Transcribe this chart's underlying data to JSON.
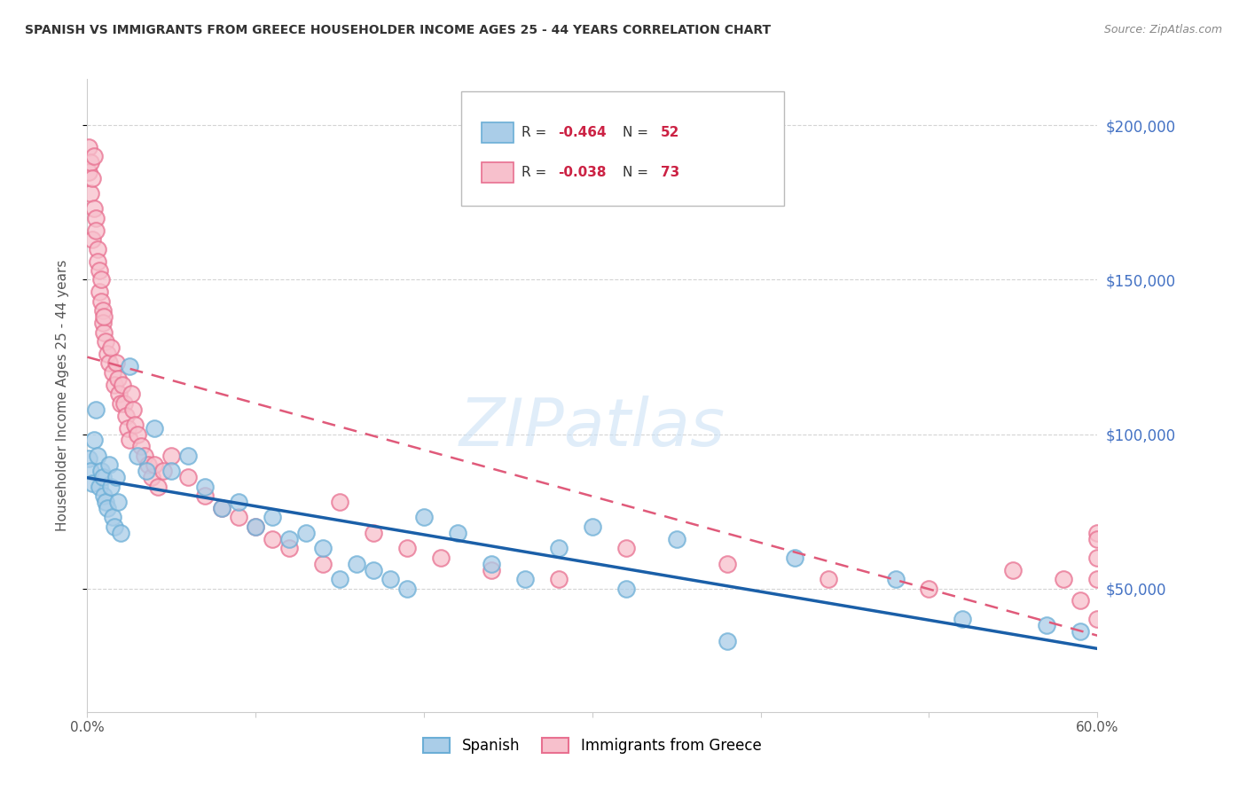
{
  "title": "SPANISH VS IMMIGRANTS FROM GREECE HOUSEHOLDER INCOME AGES 25 - 44 YEARS CORRELATION CHART",
  "source": "Source: ZipAtlas.com",
  "ylabel": "Householder Income Ages 25 - 44 years",
  "ytick_labels": [
    "$50,000",
    "$100,000",
    "$150,000",
    "$200,000"
  ],
  "ytick_values": [
    50000,
    100000,
    150000,
    200000
  ],
  "ymin": 10000,
  "ymax": 215000,
  "xmin": 0.0,
  "xmax": 0.6,
  "legend_series_1": "Spanish",
  "legend_series_2": "Immigrants from Greece",
  "blue_scatter_face": "#aacde8",
  "blue_scatter_edge": "#6baed6",
  "pink_scatter_face": "#f7c0cc",
  "pink_scatter_edge": "#e87090",
  "blue_line_color": "#1a5fa8",
  "pink_line_color": "#e05a7a",
  "background_color": "#ffffff",
  "grid_color": "#d0d0d0",
  "title_color": "#333333",
  "right_tick_color": "#4472C4",
  "watermark_color": "#c8dff5",
  "source_color": "#888888",
  "ylabel_color": "#555555",
  "xtick_color": "#555555",
  "spanish_x": [
    0.001,
    0.002,
    0.003,
    0.004,
    0.005,
    0.006,
    0.007,
    0.008,
    0.009,
    0.01,
    0.011,
    0.012,
    0.013,
    0.014,
    0.015,
    0.016,
    0.017,
    0.018,
    0.02,
    0.025,
    0.03,
    0.035,
    0.04,
    0.05,
    0.06,
    0.07,
    0.08,
    0.09,
    0.1,
    0.11,
    0.12,
    0.13,
    0.14,
    0.15,
    0.16,
    0.17,
    0.18,
    0.19,
    0.2,
    0.22,
    0.24,
    0.26,
    0.28,
    0.3,
    0.32,
    0.35,
    0.38,
    0.42,
    0.48,
    0.52,
    0.57,
    0.59
  ],
  "spanish_y": [
    92000,
    88000,
    84000,
    98000,
    108000,
    93000,
    83000,
    88000,
    86000,
    80000,
    78000,
    76000,
    90000,
    83000,
    73000,
    70000,
    86000,
    78000,
    68000,
    122000,
    93000,
    88000,
    102000,
    88000,
    93000,
    83000,
    76000,
    78000,
    70000,
    73000,
    66000,
    68000,
    63000,
    53000,
    58000,
    56000,
    53000,
    50000,
    73000,
    68000,
    58000,
    53000,
    63000,
    70000,
    50000,
    66000,
    33000,
    60000,
    53000,
    40000,
    38000,
    36000
  ],
  "greece_x": [
    0.001,
    0.001,
    0.002,
    0.002,
    0.003,
    0.003,
    0.004,
    0.004,
    0.005,
    0.005,
    0.006,
    0.006,
    0.007,
    0.007,
    0.008,
    0.008,
    0.009,
    0.009,
    0.01,
    0.01,
    0.011,
    0.012,
    0.013,
    0.014,
    0.015,
    0.016,
    0.017,
    0.018,
    0.019,
    0.02,
    0.021,
    0.022,
    0.023,
    0.024,
    0.025,
    0.026,
    0.027,
    0.028,
    0.03,
    0.032,
    0.034,
    0.036,
    0.038,
    0.04,
    0.042,
    0.045,
    0.05,
    0.06,
    0.07,
    0.08,
    0.09,
    0.1,
    0.11,
    0.12,
    0.14,
    0.15,
    0.17,
    0.19,
    0.21,
    0.24,
    0.28,
    0.32,
    0.38,
    0.44,
    0.5,
    0.55,
    0.58,
    0.59,
    0.6,
    0.6,
    0.6,
    0.6,
    0.6
  ],
  "greece_y": [
    193000,
    185000,
    188000,
    178000,
    163000,
    183000,
    173000,
    190000,
    170000,
    166000,
    160000,
    156000,
    153000,
    146000,
    150000,
    143000,
    140000,
    136000,
    133000,
    138000,
    130000,
    126000,
    123000,
    128000,
    120000,
    116000,
    123000,
    118000,
    113000,
    110000,
    116000,
    110000,
    106000,
    102000,
    98000,
    113000,
    108000,
    103000,
    100000,
    96000,
    93000,
    90000,
    86000,
    90000,
    83000,
    88000,
    93000,
    86000,
    80000,
    76000,
    73000,
    70000,
    66000,
    63000,
    58000,
    78000,
    68000,
    63000,
    60000,
    56000,
    53000,
    63000,
    58000,
    53000,
    50000,
    56000,
    53000,
    46000,
    60000,
    68000,
    66000,
    53000,
    40000
  ]
}
